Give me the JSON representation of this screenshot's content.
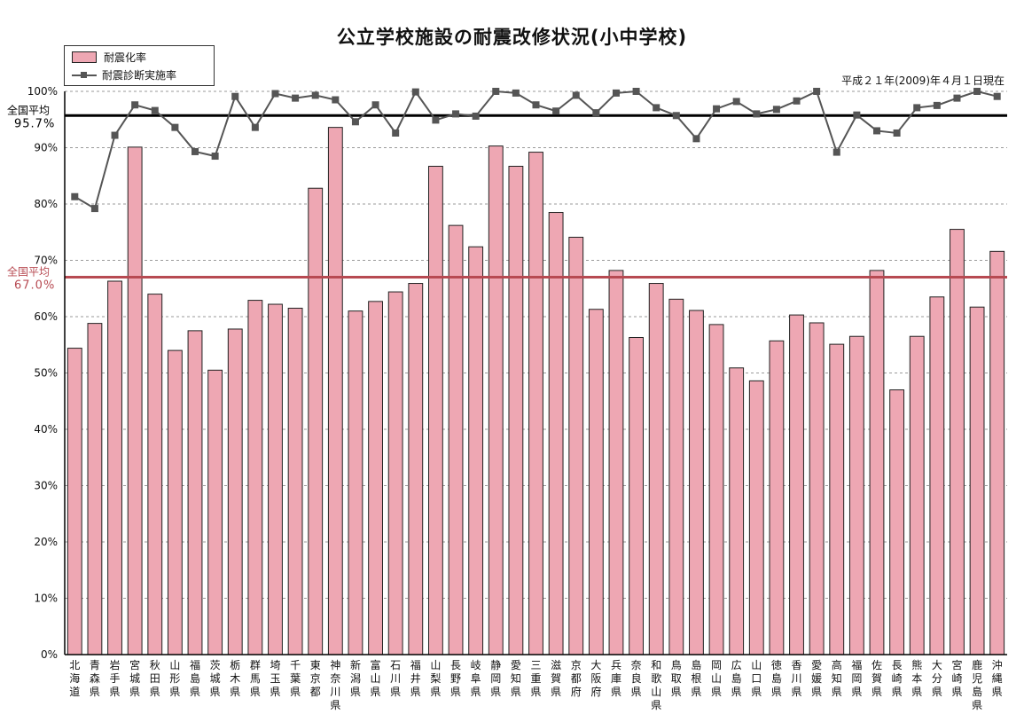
{
  "chart_data": {
    "type": "bar",
    "title": "公立学校施設の耐震改修状況(小中学校)",
    "note": "平成２１年(2009)年４月１日現在",
    "ylim": [
      0,
      100
    ],
    "yticks": [
      "0%",
      "10%",
      "20%",
      "30%",
      "40%",
      "50%",
      "60%",
      "70%",
      "80%",
      "90%",
      "100%"
    ],
    "grid": true,
    "legend_position": "top-left",
    "categories": [
      "北海道",
      "青森県",
      "岩手県",
      "宮城県",
      "秋田県",
      "山形県",
      "福島県",
      "茨城県",
      "栃木県",
      "群馬県",
      "埼玉県",
      "千葉県",
      "東京都",
      "神奈川県",
      "新潟県",
      "富山県",
      "石川県",
      "福井県",
      "山梨県",
      "長野県",
      "岐阜県",
      "静岡県",
      "愛知県",
      "三重県",
      "滋賀県",
      "京都府",
      "大阪府",
      "兵庫県",
      "奈良県",
      "和歌山県",
      "鳥取県",
      "島根県",
      "岡山県",
      "広島県",
      "山口県",
      "徳島県",
      "香川県",
      "愛媛県",
      "高知県",
      "福岡県",
      "佐賀県",
      "長崎県",
      "熊本県",
      "大分県",
      "宮崎県",
      "鹿児島県",
      "沖縄県"
    ],
    "series": [
      {
        "name": "耐震化率",
        "kind": "bar",
        "color": "#eea7b3",
        "values": [
          54.4,
          58.8,
          66.3,
          90.1,
          64.0,
          54.0,
          57.5,
          50.5,
          57.8,
          62.9,
          62.2,
          61.5,
          82.8,
          93.6,
          61.0,
          62.7,
          64.4,
          65.9,
          86.7,
          76.2,
          72.4,
          90.3,
          86.7,
          89.2,
          78.5,
          74.1,
          61.3,
          68.2,
          56.3,
          65.9,
          63.1,
          61.1,
          58.6,
          50.9,
          48.6,
          55.7,
          60.3,
          58.9,
          55.1,
          56.5,
          68.2,
          47.0,
          56.5,
          63.5,
          75.5,
          61.7,
          71.6
        ]
      },
      {
        "name": "耐震診断実施率",
        "kind": "line",
        "color": "#555555",
        "values": [
          81.3,
          79.2,
          92.2,
          97.6,
          96.6,
          93.6,
          89.3,
          88.5,
          99.1,
          93.6,
          99.6,
          98.8,
          99.3,
          98.5,
          94.6,
          97.6,
          92.6,
          99.9,
          94.9,
          96.0,
          95.6,
          100.0,
          99.7,
          97.6,
          96.5,
          99.3,
          96.2,
          99.7,
          100.0,
          97.1,
          95.7,
          91.6,
          96.9,
          98.2,
          96.0,
          96.8,
          98.3,
          100.0,
          89.2,
          95.8,
          93.0,
          92.6,
          97.1,
          97.5,
          98.8,
          100.0,
          99.1
        ]
      }
    ],
    "reference_lines": [
      {
        "label": "全国平均",
        "value_label": "95.7%",
        "value": 95.7,
        "color": "#000000"
      },
      {
        "label": "全国平均",
        "value_label": "67.0%",
        "value": 67.0,
        "color": "#b74a52"
      }
    ]
  }
}
